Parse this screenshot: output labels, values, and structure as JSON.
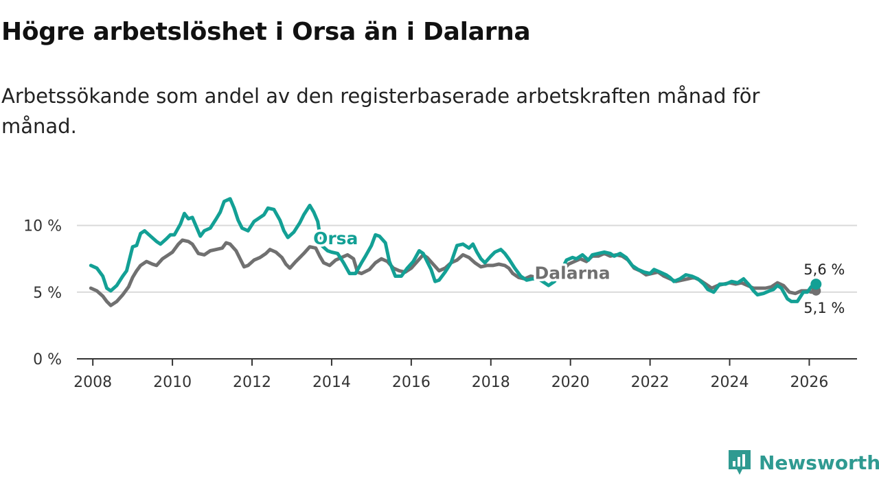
{
  "title": "Högre arbetslöshet i Orsa än i Dalarna",
  "subtitle": "Arbetssökande som andel av den registerbaserade arbetskraften månad för månad.",
  "brand": {
    "name": "Newsworthy",
    "icon": "newsworthy-logo-icon"
  },
  "colors": {
    "orsa": "#13a095",
    "dalarna": "#707070",
    "grid": "#d9d9d9",
    "axis": "#333333"
  },
  "chart_data": {
    "type": "line",
    "title": "Högre arbetslöshet i Orsa än i Dalarna",
    "xlabel": "",
    "ylabel": "",
    "xlim": [
      2007.6,
      2027.2
    ],
    "ylim": [
      0,
      12.5
    ],
    "grid": true,
    "x_ticks": [
      2008,
      2010,
      2012,
      2014,
      2016,
      2018,
      2020,
      2022,
      2024,
      2026
    ],
    "x_tick_labels": [
      "2008",
      "2010",
      "2012",
      "2014",
      "2016",
      "2018",
      "2020",
      "2022",
      "2024",
      "2026"
    ],
    "y_ticks": [
      0,
      5,
      10
    ],
    "y_tick_labels": [
      "0 %",
      "5 %",
      "10 %"
    ],
    "series": [
      {
        "name": "Orsa",
        "end_label": "5,6 %",
        "points": [
          [
            2007.95,
            7.0
          ],
          [
            2008.1,
            6.8
          ],
          [
            2008.25,
            6.2
          ],
          [
            2008.35,
            5.3
          ],
          [
            2008.45,
            5.1
          ],
          [
            2008.6,
            5.5
          ],
          [
            2008.75,
            6.2
          ],
          [
            2008.85,
            6.6
          ],
          [
            2009.0,
            8.4
          ],
          [
            2009.1,
            8.5
          ],
          [
            2009.2,
            9.4
          ],
          [
            2009.3,
            9.6
          ],
          [
            2009.45,
            9.2
          ],
          [
            2009.6,
            8.8
          ],
          [
            2009.7,
            8.6
          ],
          [
            2009.85,
            9.0
          ],
          [
            2009.95,
            9.3
          ],
          [
            2010.05,
            9.3
          ],
          [
            2010.2,
            10.1
          ],
          [
            2010.3,
            10.9
          ],
          [
            2010.4,
            10.5
          ],
          [
            2010.5,
            10.6
          ],
          [
            2010.6,
            9.9
          ],
          [
            2010.7,
            9.2
          ],
          [
            2010.8,
            9.6
          ],
          [
            2010.95,
            9.8
          ],
          [
            2011.1,
            10.5
          ],
          [
            2011.2,
            11.0
          ],
          [
            2011.3,
            11.8
          ],
          [
            2011.45,
            12.0
          ],
          [
            2011.55,
            11.3
          ],
          [
            2011.65,
            10.4
          ],
          [
            2011.75,
            9.8
          ],
          [
            2011.9,
            9.6
          ],
          [
            2012.05,
            10.3
          ],
          [
            2012.15,
            10.5
          ],
          [
            2012.3,
            10.8
          ],
          [
            2012.4,
            11.3
          ],
          [
            2012.55,
            11.2
          ],
          [
            2012.7,
            10.4
          ],
          [
            2012.8,
            9.6
          ],
          [
            2012.9,
            9.1
          ],
          [
            2013.05,
            9.5
          ],
          [
            2013.2,
            10.2
          ],
          [
            2013.3,
            10.8
          ],
          [
            2013.45,
            11.5
          ],
          [
            2013.55,
            11.0
          ],
          [
            2013.65,
            10.3
          ],
          [
            2013.75,
            8.5
          ],
          [
            2013.9,
            8.1
          ],
          [
            2014.0,
            8.0
          ],
          [
            2014.15,
            7.9
          ],
          [
            2014.3,
            7.2
          ],
          [
            2014.45,
            6.4
          ],
          [
            2014.6,
            6.4
          ],
          [
            2014.75,
            7.2
          ],
          [
            2014.85,
            7.7
          ],
          [
            2015.0,
            8.5
          ],
          [
            2015.1,
            9.3
          ],
          [
            2015.2,
            9.2
          ],
          [
            2015.35,
            8.7
          ],
          [
            2015.45,
            7.3
          ],
          [
            2015.6,
            6.2
          ],
          [
            2015.75,
            6.2
          ],
          [
            2015.9,
            6.8
          ],
          [
            2016.05,
            7.3
          ],
          [
            2016.2,
            8.1
          ],
          [
            2016.3,
            7.9
          ],
          [
            2016.4,
            7.3
          ],
          [
            2016.5,
            6.7
          ],
          [
            2016.6,
            5.8
          ],
          [
            2016.7,
            5.9
          ],
          [
            2016.85,
            6.5
          ],
          [
            2017.0,
            7.2
          ],
          [
            2017.15,
            8.5
          ],
          [
            2017.3,
            8.6
          ],
          [
            2017.45,
            8.3
          ],
          [
            2017.55,
            8.6
          ],
          [
            2017.65,
            8.0
          ],
          [
            2017.75,
            7.5
          ],
          [
            2017.85,
            7.2
          ],
          [
            2018.0,
            7.7
          ],
          [
            2018.1,
            8.0
          ],
          [
            2018.25,
            8.2
          ],
          [
            2018.35,
            7.9
          ],
          [
            2018.45,
            7.5
          ],
          [
            2018.6,
            6.8
          ],
          [
            2018.75,
            6.2
          ],
          [
            2018.9,
            5.9
          ],
          [
            2019.05,
            6.0
          ],
          [
            2019.2,
            6.0
          ],
          [
            2019.35,
            5.7
          ],
          [
            2019.45,
            5.5
          ],
          [
            2019.6,
            5.8
          ],
          [
            2019.75,
            6.5
          ],
          [
            2019.9,
            7.4
          ],
          [
            2020.05,
            7.6
          ],
          [
            2020.15,
            7.5
          ],
          [
            2020.3,
            7.8
          ],
          [
            2020.45,
            7.4
          ],
          [
            2020.55,
            7.8
          ],
          [
            2020.7,
            7.9
          ],
          [
            2020.85,
            8.0
          ],
          [
            2021.0,
            7.9
          ],
          [
            2021.1,
            7.7
          ],
          [
            2021.25,
            7.9
          ],
          [
            2021.4,
            7.6
          ],
          [
            2021.55,
            7.0
          ],
          [
            2021.7,
            6.7
          ],
          [
            2021.85,
            6.5
          ],
          [
            2022.0,
            6.4
          ],
          [
            2022.1,
            6.7
          ],
          [
            2022.25,
            6.5
          ],
          [
            2022.4,
            6.3
          ],
          [
            2022.5,
            6.1
          ],
          [
            2022.6,
            5.8
          ],
          [
            2022.75,
            6.0
          ],
          [
            2022.9,
            6.3
          ],
          [
            2023.05,
            6.2
          ],
          [
            2023.2,
            6.0
          ],
          [
            2023.35,
            5.6
          ],
          [
            2023.45,
            5.2
          ],
          [
            2023.6,
            5.0
          ],
          [
            2023.75,
            5.6
          ],
          [
            2023.9,
            5.6
          ],
          [
            2024.05,
            5.8
          ],
          [
            2024.2,
            5.7
          ],
          [
            2024.35,
            6.0
          ],
          [
            2024.5,
            5.5
          ],
          [
            2024.6,
            5.1
          ],
          [
            2024.7,
            4.8
          ],
          [
            2024.85,
            4.9
          ],
          [
            2025.0,
            5.1
          ],
          [
            2025.1,
            5.2
          ],
          [
            2025.2,
            5.5
          ],
          [
            2025.3,
            5.3
          ],
          [
            2025.45,
            4.5
          ],
          [
            2025.55,
            4.3
          ],
          [
            2025.7,
            4.3
          ],
          [
            2025.85,
            5.0
          ],
          [
            2025.95,
            5.0
          ],
          [
            2026.05,
            5.4
          ],
          [
            2026.17,
            5.6
          ]
        ]
      },
      {
        "name": "Dalarna",
        "end_label": "5,1 %",
        "points": [
          [
            2007.95,
            5.3
          ],
          [
            2008.1,
            5.1
          ],
          [
            2008.25,
            4.7
          ],
          [
            2008.35,
            4.3
          ],
          [
            2008.45,
            4.0
          ],
          [
            2008.6,
            4.3
          ],
          [
            2008.75,
            4.8
          ],
          [
            2008.9,
            5.4
          ],
          [
            2009.0,
            6.1
          ],
          [
            2009.1,
            6.6
          ],
          [
            2009.2,
            7.0
          ],
          [
            2009.35,
            7.3
          ],
          [
            2009.5,
            7.1
          ],
          [
            2009.6,
            7.0
          ],
          [
            2009.75,
            7.5
          ],
          [
            2009.9,
            7.8
          ],
          [
            2010.0,
            8.0
          ],
          [
            2010.15,
            8.6
          ],
          [
            2010.25,
            8.9
          ],
          [
            2010.4,
            8.8
          ],
          [
            2010.5,
            8.6
          ],
          [
            2010.65,
            7.9
          ],
          [
            2010.8,
            7.8
          ],
          [
            2010.95,
            8.1
          ],
          [
            2011.1,
            8.2
          ],
          [
            2011.25,
            8.3
          ],
          [
            2011.35,
            8.7
          ],
          [
            2011.45,
            8.6
          ],
          [
            2011.6,
            8.1
          ],
          [
            2011.7,
            7.5
          ],
          [
            2011.8,
            6.9
          ],
          [
            2011.9,
            7.0
          ],
          [
            2012.05,
            7.4
          ],
          [
            2012.2,
            7.6
          ],
          [
            2012.35,
            7.9
          ],
          [
            2012.45,
            8.2
          ],
          [
            2012.6,
            8.0
          ],
          [
            2012.75,
            7.6
          ],
          [
            2012.85,
            7.1
          ],
          [
            2012.95,
            6.8
          ],
          [
            2013.1,
            7.3
          ],
          [
            2013.2,
            7.6
          ],
          [
            2013.3,
            7.9
          ],
          [
            2013.45,
            8.4
          ],
          [
            2013.6,
            8.3
          ],
          [
            2013.7,
            7.7
          ],
          [
            2013.8,
            7.2
          ],
          [
            2013.95,
            7.0
          ],
          [
            2014.1,
            7.4
          ],
          [
            2014.25,
            7.6
          ],
          [
            2014.4,
            7.8
          ],
          [
            2014.55,
            7.5
          ],
          [
            2014.65,
            6.5
          ],
          [
            2014.75,
            6.4
          ],
          [
            2014.95,
            6.7
          ],
          [
            2015.1,
            7.2
          ],
          [
            2015.25,
            7.5
          ],
          [
            2015.4,
            7.3
          ],
          [
            2015.55,
            6.8
          ],
          [
            2015.7,
            6.6
          ],
          [
            2015.85,
            6.5
          ],
          [
            2016.0,
            6.8
          ],
          [
            2016.15,
            7.3
          ],
          [
            2016.3,
            7.8
          ],
          [
            2016.4,
            7.6
          ],
          [
            2016.55,
            7.1
          ],
          [
            2016.7,
            6.6
          ],
          [
            2016.85,
            6.8
          ],
          [
            2017.0,
            7.2
          ],
          [
            2017.15,
            7.4
          ],
          [
            2017.3,
            7.8
          ],
          [
            2017.45,
            7.6
          ],
          [
            2017.6,
            7.2
          ],
          [
            2017.75,
            6.9
          ],
          [
            2017.9,
            7.0
          ],
          [
            2018.05,
            7.0
          ],
          [
            2018.2,
            7.1
          ],
          [
            2018.35,
            7.0
          ],
          [
            2018.45,
            6.8
          ],
          [
            2018.55,
            6.4
          ],
          [
            2018.7,
            6.1
          ],
          [
            2018.85,
            6.0
          ],
          [
            2019.0,
            6.2
          ],
          [
            2019.15,
            6.1
          ],
          [
            2019.3,
            6.2
          ],
          [
            2019.5,
            6.1
          ],
          [
            2019.65,
            6.2
          ],
          [
            2019.8,
            6.6
          ],
          [
            2019.95,
            7.1
          ],
          [
            2020.1,
            7.3
          ],
          [
            2020.25,
            7.5
          ],
          [
            2020.4,
            7.3
          ],
          [
            2020.55,
            7.7
          ],
          [
            2020.7,
            7.7
          ],
          [
            2020.85,
            7.9
          ],
          [
            2021.0,
            7.7
          ],
          [
            2021.15,
            7.8
          ],
          [
            2021.3,
            7.7
          ],
          [
            2021.45,
            7.4
          ],
          [
            2021.6,
            6.8
          ],
          [
            2021.75,
            6.6
          ],
          [
            2021.9,
            6.3
          ],
          [
            2022.05,
            6.4
          ],
          [
            2022.2,
            6.5
          ],
          [
            2022.35,
            6.2
          ],
          [
            2022.5,
            6.0
          ],
          [
            2022.65,
            5.8
          ],
          [
            2022.8,
            5.9
          ],
          [
            2022.95,
            6.0
          ],
          [
            2023.1,
            6.1
          ],
          [
            2023.25,
            5.9
          ],
          [
            2023.4,
            5.6
          ],
          [
            2023.55,
            5.3
          ],
          [
            2023.7,
            5.5
          ],
          [
            2023.85,
            5.6
          ],
          [
            2024.0,
            5.7
          ],
          [
            2024.15,
            5.6
          ],
          [
            2024.3,
            5.7
          ],
          [
            2024.45,
            5.5
          ],
          [
            2024.6,
            5.3
          ],
          [
            2024.75,
            5.3
          ],
          [
            2024.9,
            5.3
          ],
          [
            2025.05,
            5.4
          ],
          [
            2025.2,
            5.7
          ],
          [
            2025.35,
            5.5
          ],
          [
            2025.5,
            5.0
          ],
          [
            2025.65,
            4.9
          ],
          [
            2025.8,
            5.1
          ],
          [
            2025.95,
            5.1
          ],
          [
            2026.05,
            5.0
          ],
          [
            2026.17,
            5.1
          ]
        ]
      }
    ]
  }
}
